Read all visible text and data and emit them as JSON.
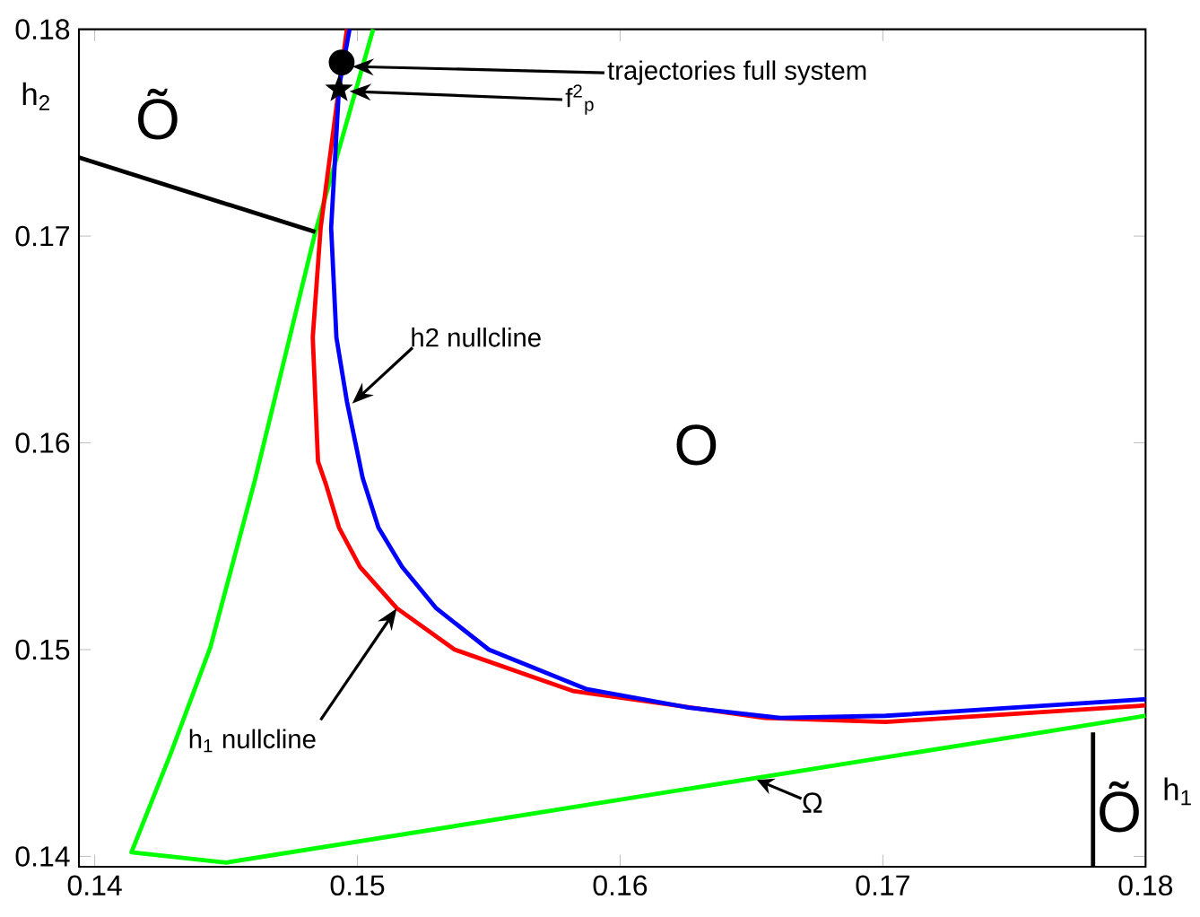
{
  "chart_data": {
    "type": "line",
    "xlabel": "h$_{1}$",
    "ylabel": "h$_{2}$",
    "xlim": [
      0.1394,
      0.18
    ],
    "ylim": [
      0.1395,
      0.18
    ],
    "xticks": [
      0.14,
      0.15,
      0.16,
      0.17,
      0.18
    ],
    "yticks": [
      0.14,
      0.15,
      0.16,
      0.17,
      0.18
    ],
    "grid": false,
    "series": [
      {
        "type": "line",
        "color": "#00ff00",
        "x": [
          0.1506,
          0.1484,
          0.1461,
          0.1444,
          0.1429,
          0.1414,
          0.145,
          0.18
        ],
        "values": [
          0.18,
          0.1702,
          0.1582,
          0.1501,
          0.145,
          0.1402,
          0.1397,
          0.1468
        ]
      },
      {
        "type": "line",
        "color": "#ff0000",
        "x": [
          0.1496,
          0.1493,
          0.1486,
          0.1483,
          0.1485,
          0.1488,
          0.1493,
          0.1501,
          0.1515,
          0.1537,
          0.1582,
          0.1655,
          0.1701,
          0.18
        ],
        "values": [
          0.18,
          0.1772,
          0.1704,
          0.1651,
          0.1591,
          0.158,
          0.1559,
          0.154,
          0.152,
          0.15,
          0.148,
          0.1467,
          0.1465,
          0.1473
        ]
      },
      {
        "type": "line",
        "color": "#0000ff",
        "x": [
          0.1497,
          0.1493,
          0.149,
          0.1492,
          0.1496,
          0.1502,
          0.1508,
          0.1517,
          0.153,
          0.155,
          0.1587,
          0.1626,
          0.1661,
          0.1701,
          0.18
        ],
        "values": [
          0.18,
          0.1772,
          0.1704,
          0.1651,
          0.162,
          0.1583,
          0.1559,
          0.154,
          0.152,
          0.15,
          0.1481,
          0.1472,
          0.1467,
          0.1468,
          0.1476
        ]
      },
      {
        "type": "line",
        "color": "#000000",
        "x": [
          0.1394,
          0.1484
        ],
        "values": [
          0.1738,
          0.1702
        ]
      },
      {
        "type": "line",
        "color": "#000000",
        "x": [
          0.178,
          0.178
        ],
        "values": [
          0.1395,
          0.146
        ]
      },
      {
        "type": "scatter",
        "marker": "circle",
        "color": "#000000",
        "x": [
          0.1494
        ],
        "values": [
          0.1784
        ]
      },
      {
        "type": "scatter",
        "marker": "star",
        "color": "#000000",
        "x": [
          0.1493
        ],
        "values": [
          0.1771
        ]
      }
    ],
    "annotations": [
      {
        "text": "trajectories full system",
        "x": 0.1498,
        "y": 0.1782
      },
      {
        "text": "f$^{2}$$_{p}$",
        "x": 0.1497,
        "y": 0.177
      },
      {
        "text": "h2 nullcline",
        "x": 0.1498,
        "y": 0.1619
      },
      {
        "text": "h$_{1}$ nullcline",
        "x": 0.1515,
        "y": 0.152
      },
      {
        "text": "Ω",
        "x": 0.1652,
        "y": 0.1437
      },
      "Õ",
      "O",
      "Õ"
    ]
  }
}
